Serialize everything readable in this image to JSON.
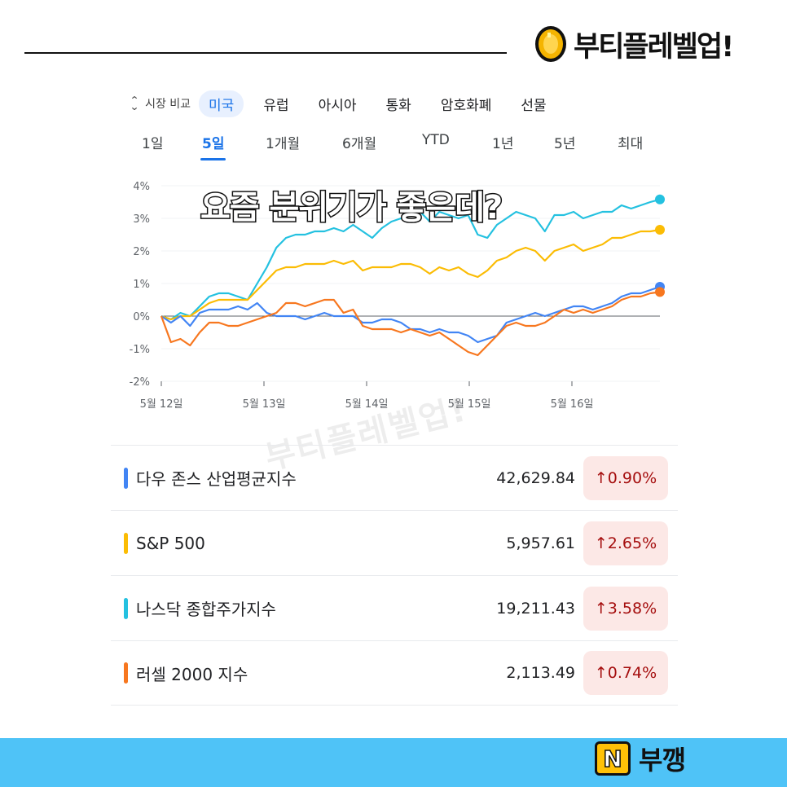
{
  "brand": {
    "name": "부티플레벨업!",
    "icon": "gold-coin-icon"
  },
  "market_tabs": {
    "compare_label": "시장 비교",
    "compare_icon": "chevron-up-down-icon",
    "items": [
      "미국",
      "유럽",
      "아시아",
      "통화",
      "암호화폐",
      "선물"
    ],
    "active": "미국"
  },
  "range_tabs": {
    "items": [
      "1일",
      "5일",
      "1개월",
      "6개월",
      "YTD",
      "1년",
      "5년",
      "최대"
    ],
    "active": "5일"
  },
  "overlay_caption": "요즘 분위기가 좋은데?",
  "watermark": "부티플레벨업!",
  "chart_data": {
    "type": "line",
    "x_ticks": [
      "5월 12일",
      "5월 13일",
      "5월 14일",
      "5월 15일",
      "5월 16일"
    ],
    "y_ticks": [
      "4%",
      "3%",
      "2%",
      "1%",
      "0%",
      "-1%",
      "-2%"
    ],
    "ylim": [
      -2,
      4
    ],
    "grid": true,
    "series": [
      {
        "name": "나스닥 종합주가지수",
        "color": "#24c1e0",
        "values": [
          0,
          -0.1,
          0.1,
          0,
          0.3,
          0.6,
          0.7,
          0.7,
          0.6,
          0.5,
          1.0,
          1.5,
          2.1,
          2.4,
          2.5,
          2.5,
          2.6,
          2.6,
          2.7,
          2.6,
          2.8,
          2.6,
          2.4,
          2.7,
          2.9,
          3.0,
          3.2,
          3.2,
          2.9,
          3.2,
          3.1,
          3.0,
          3.1,
          2.5,
          2.4,
          2.8,
          3.0,
          3.2,
          3.1,
          3.0,
          2.6,
          3.1,
          3.1,
          3.2,
          3.0,
          3.1,
          3.2,
          3.2,
          3.4,
          3.3,
          3.4,
          3.5,
          3.58
        ]
      },
      {
        "name": "S&P 500",
        "color": "#fbbc04",
        "values": [
          0,
          -0.1,
          0,
          0,
          0.2,
          0.4,
          0.5,
          0.5,
          0.5,
          0.5,
          0.8,
          1.1,
          1.4,
          1.5,
          1.5,
          1.6,
          1.6,
          1.6,
          1.7,
          1.6,
          1.7,
          1.4,
          1.5,
          1.5,
          1.5,
          1.6,
          1.6,
          1.5,
          1.3,
          1.5,
          1.4,
          1.5,
          1.3,
          1.2,
          1.4,
          1.7,
          1.8,
          2.0,
          2.1,
          2.0,
          1.7,
          2.0,
          2.1,
          2.2,
          2.0,
          2.1,
          2.2,
          2.4,
          2.4,
          2.5,
          2.6,
          2.6,
          2.65
        ]
      },
      {
        "name": "다우 존스 산업평균지수",
        "color": "#4285f4",
        "values": [
          0,
          -0.2,
          0,
          -0.3,
          0.1,
          0.2,
          0.2,
          0.2,
          0.3,
          0.2,
          0.4,
          0.1,
          0,
          0,
          0,
          -0.1,
          0,
          0.1,
          0,
          0,
          0,
          -0.2,
          -0.2,
          -0.1,
          -0.1,
          -0.2,
          -0.4,
          -0.4,
          -0.5,
          -0.4,
          -0.5,
          -0.5,
          -0.6,
          -0.8,
          -0.7,
          -0.6,
          -0.2,
          -0.1,
          0,
          0.1,
          0,
          0.1,
          0.2,
          0.3,
          0.3,
          0.2,
          0.3,
          0.4,
          0.6,
          0.7,
          0.7,
          0.8,
          0.9
        ]
      },
      {
        "name": "러셀 2000 지수",
        "color": "#f7771f",
        "values": [
          0,
          -0.8,
          -0.7,
          -0.9,
          -0.5,
          -0.2,
          -0.2,
          -0.3,
          -0.3,
          -0.2,
          -0.1,
          0,
          0.1,
          0.4,
          0.4,
          0.3,
          0.4,
          0.5,
          0.5,
          0.1,
          0.2,
          -0.3,
          -0.4,
          -0.4,
          -0.4,
          -0.5,
          -0.4,
          -0.5,
          -0.6,
          -0.5,
          -0.7,
          -0.9,
          -1.1,
          -1.2,
          -0.9,
          -0.6,
          -0.3,
          -0.2,
          -0.3,
          -0.3,
          -0.2,
          0,
          0.2,
          0.1,
          0.2,
          0.1,
          0.2,
          0.3,
          0.5,
          0.6,
          0.6,
          0.7,
          0.74
        ]
      }
    ]
  },
  "indices": [
    {
      "name": "다우 존스 산업평균지수",
      "value": "42,629.84",
      "change": "↑0.90%",
      "color": "#4285f4"
    },
    {
      "name": "S&P 500",
      "value": "5,957.61",
      "change": "↑2.65%",
      "color": "#fbbc04"
    },
    {
      "name": "나스닥 종합주가지수",
      "value": "19,211.43",
      "change": "↑3.58%",
      "color": "#24c1e0"
    },
    {
      "name": "러셀 2000 지수",
      "value": "2,113.49",
      "change": "↑0.74%",
      "color": "#f7771f"
    }
  ],
  "footer": {
    "logo_letter": "N",
    "text": "부깽"
  }
}
